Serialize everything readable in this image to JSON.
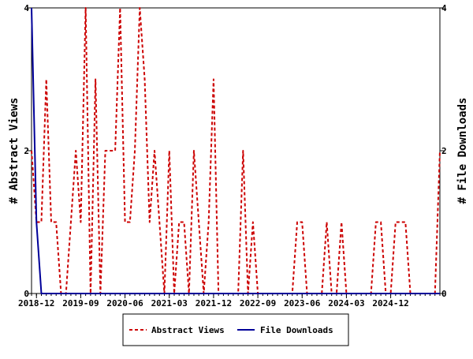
{
  "chart_data": {
    "type": "line",
    "x_tick_labels": [
      "2018-12",
      "2019-09",
      "2020-06",
      "2021-03",
      "2021-12",
      "2022-09",
      "2023-06",
      "2024-03",
      "2024-12"
    ],
    "x_tick_dates": [
      "2018-12",
      "2019-09",
      "2020-06",
      "2021-03",
      "2021-12",
      "2022-09",
      "2023-06",
      "2024-03",
      "2024-12"
    ],
    "x_start": "2018-11",
    "x_end": "2025-10",
    "y_left_label": "# Abstract Views",
    "y_right_label": "# File Downloads",
    "y_left_ticks": [
      "0",
      "2",
      "4"
    ],
    "y_right_ticks": [
      "0",
      "2",
      "4"
    ],
    "y_left_range": [
      0,
      4
    ],
    "y_right_range": [
      0,
      4
    ],
    "grid": false,
    "legend_position": "bottom",
    "series": [
      {
        "name": "Abstract Views",
        "color": "#cc0000",
        "style": "dashed",
        "axis": "left",
        "x": [
          "2018-11",
          "2018-12",
          "2019-01",
          "2019-02",
          "2019-03",
          "2019-04",
          "2019-05",
          "2019-06",
          "2019-07",
          "2019-08",
          "2019-09",
          "2019-10",
          "2019-11",
          "2019-12",
          "2020-01",
          "2020-02",
          "2020-03",
          "2020-04",
          "2020-05",
          "2020-06",
          "2020-07",
          "2020-08",
          "2020-09",
          "2020-10",
          "2020-11",
          "2020-12",
          "2021-01",
          "2021-02",
          "2021-03",
          "2021-04",
          "2021-05",
          "2021-06",
          "2021-07",
          "2021-08",
          "2021-09",
          "2021-10",
          "2021-11",
          "2021-12",
          "2022-01",
          "2022-02",
          "2022-03",
          "2022-04",
          "2022-05",
          "2022-06",
          "2022-07",
          "2022-08",
          "2022-09",
          "2022-10",
          "2022-11",
          "2022-12",
          "2023-01",
          "2023-02",
          "2023-03",
          "2023-04",
          "2023-05",
          "2023-06",
          "2023-07",
          "2023-08",
          "2023-09",
          "2023-10",
          "2023-11",
          "2023-12",
          "2024-01",
          "2024-02",
          "2024-03",
          "2024-04",
          "2024-05",
          "2024-06",
          "2024-07",
          "2024-08",
          "2024-09",
          "2024-10",
          "2024-11",
          "2024-12",
          "2025-01",
          "2025-02",
          "2025-03",
          "2025-04",
          "2025-05",
          "2025-06",
          "2025-07",
          "2025-08",
          "2025-09",
          "2025-10"
        ],
        "values": [
          2,
          1,
          1,
          3,
          1,
          1,
          0,
          0,
          1,
          2,
          1,
          4,
          0,
          3,
          0,
          2,
          2,
          2,
          4,
          1,
          1,
          2,
          4,
          3,
          1,
          2,
          1,
          0,
          2,
          0,
          1,
          1,
          0,
          2,
          1,
          0,
          1,
          3,
          0,
          0,
          0,
          0,
          0,
          2,
          0,
          1,
          0,
          0,
          0,
          0,
          0,
          0,
          0,
          0,
          1,
          1,
          0,
          0,
          0,
          0,
          1,
          0,
          0,
          1,
          0,
          0,
          0,
          0,
          0,
          0,
          1,
          1,
          0,
          0,
          1,
          1,
          1,
          0,
          0,
          0,
          0,
          0,
          0,
          2
        ]
      },
      {
        "name": "File Downloads",
        "color": "#000099",
        "style": "solid",
        "axis": "right",
        "x": [
          "2018-11",
          "2018-12",
          "2019-01",
          "2019-02",
          "2019-03",
          "2019-04",
          "2019-05",
          "2019-06",
          "2019-07",
          "2019-08",
          "2019-09",
          "2019-10",
          "2019-11",
          "2019-12",
          "2020-01",
          "2020-02",
          "2020-03",
          "2020-04",
          "2020-05",
          "2020-06",
          "2020-07",
          "2020-08",
          "2020-09",
          "2020-10",
          "2020-11",
          "2020-12",
          "2021-01",
          "2021-02",
          "2021-03",
          "2021-04",
          "2021-05",
          "2021-06",
          "2021-07",
          "2021-08",
          "2021-09",
          "2021-10",
          "2021-11",
          "2021-12",
          "2022-01",
          "2022-02",
          "2022-03",
          "2022-04",
          "2022-05",
          "2022-06",
          "2022-07",
          "2022-08",
          "2022-09",
          "2022-10",
          "2022-11",
          "2022-12",
          "2023-01",
          "2023-02",
          "2023-03",
          "2023-04",
          "2023-05",
          "2023-06",
          "2023-07",
          "2023-08",
          "2023-09",
          "2023-10",
          "2023-11",
          "2023-12",
          "2024-01",
          "2024-02",
          "2024-03",
          "2024-04",
          "2024-05",
          "2024-06",
          "2024-07",
          "2024-08",
          "2024-09",
          "2024-10",
          "2024-11",
          "2024-12",
          "2025-01",
          "2025-02",
          "2025-03",
          "2025-04",
          "2025-05",
          "2025-06",
          "2025-07",
          "2025-08",
          "2025-09",
          "2025-10"
        ],
        "values": [
          4,
          1,
          0,
          0,
          0,
          0,
          0,
          0,
          0,
          0,
          0,
          0,
          0,
          0,
          0,
          0,
          0,
          0,
          0,
          0,
          0,
          0,
          0,
          0,
          0,
          0,
          0,
          0,
          0,
          0,
          0,
          0,
          0,
          0,
          0,
          0,
          0,
          0,
          0,
          0,
          0,
          0,
          0,
          0,
          0,
          0,
          0,
          0,
          0,
          0,
          0,
          0,
          0,
          0,
          0,
          0,
          0,
          0,
          0,
          0,
          0,
          0,
          0,
          0,
          0,
          0,
          0,
          0,
          0,
          0,
          0,
          0,
          0,
          0,
          0,
          0,
          0,
          0,
          0,
          0,
          0,
          0,
          0,
          0
        ]
      }
    ]
  }
}
